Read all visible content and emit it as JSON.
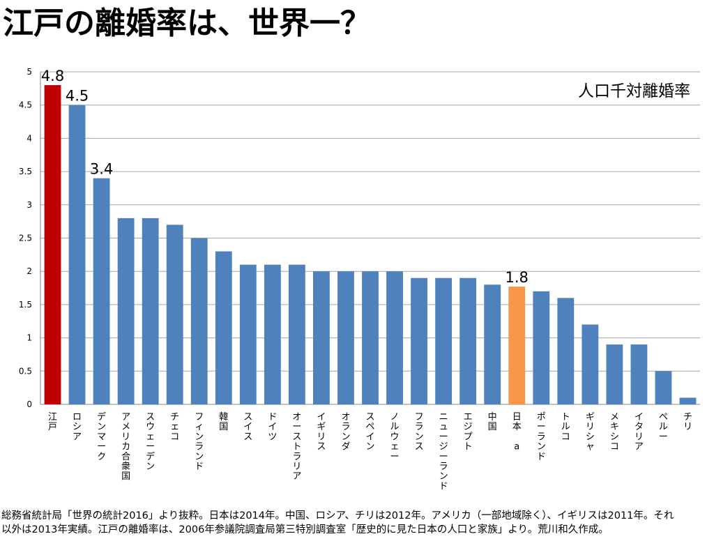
{
  "title": "江戸の離婚率は、世界一？",
  "footnote": {
    "line1": "総務省統計局「世界の統計2016」より抜粋。日本は2014年。中国、ロシア、チリは2012年。アメリカ（一部地域除く）、イギリスは2011年。それ",
    "line2": "以外は2013年実績。江戸の離婚率は、2006年参議院調査局第三特別調査室「歴史的に見た日本の人口と家族」より。荒川和久作成。"
  },
  "chart_data": {
    "type": "bar",
    "title": "",
    "legend_text": "人口千対離婚率",
    "legend_position": "top-right",
    "xlabel": "",
    "ylabel": "",
    "ylim": [
      0,
      5
    ],
    "yticks": [
      "0",
      "0.5",
      "1",
      "1.5",
      "2",
      "2.5",
      "3",
      "3.5",
      "4",
      "4.5",
      "5"
    ],
    "grid": true,
    "categories": [
      "江戸",
      "ロシア",
      "デンマーク",
      "アメリカ合衆国",
      "スウェーデン",
      "チェコ",
      "フィンランド",
      "韓国",
      "スイス",
      "ドイツ",
      "オーストラリア",
      "イギリス",
      "オランダ",
      "スペイン",
      "ノルウェー",
      "フランス",
      "ニュージーランド",
      "エジプト",
      "中国",
      "日本 a",
      "ポーランド",
      "トルコ",
      "ギリシャ",
      "メキシコ",
      "イタリア",
      "ペルー",
      "チリ"
    ],
    "values": [
      4.8,
      4.5,
      3.4,
      2.8,
      2.8,
      2.7,
      2.5,
      2.3,
      2.1,
      2.1,
      2.1,
      2.0,
      2.0,
      2.0,
      2.0,
      1.9,
      1.9,
      1.9,
      1.8,
      1.77,
      1.7,
      1.6,
      1.2,
      0.9,
      0.9,
      0.5,
      0.1
    ],
    "data_labels": [
      {
        "index": 0,
        "text": "4.8"
      },
      {
        "index": 1,
        "text": "4.5"
      },
      {
        "index": 2,
        "text": "3.4"
      },
      {
        "index": 19,
        "text": "1.8"
      }
    ],
    "colors": {
      "default": "#4f81bd",
      "edo": "#c00000",
      "japan": "#f79646"
    },
    "highlight": {
      "0": "edo",
      "19": "japan"
    }
  }
}
